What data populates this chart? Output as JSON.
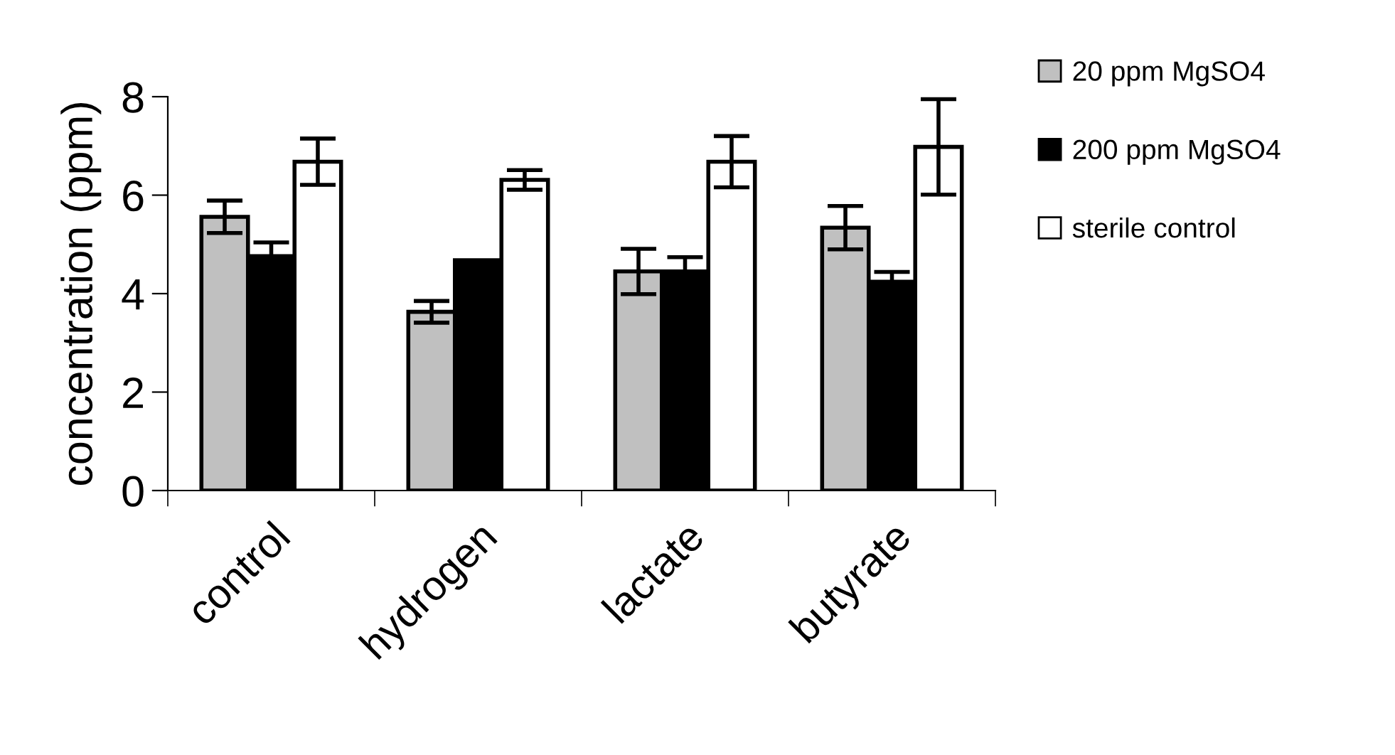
{
  "chart_data": {
    "type": "bar",
    "ylabel": "concentration (ppm)",
    "categories": [
      "control",
      "hydrogen",
      "lactate",
      "butyrate"
    ],
    "series": [
      {
        "name": "20 ppm MgSO4",
        "color": "#c0c0c0",
        "values": [
          5.56,
          3.63,
          4.45,
          5.34
        ],
        "errors": [
          0.33,
          0.22,
          0.46,
          0.44
        ]
      },
      {
        "name": "200 ppm MgSO4",
        "color": "#000000",
        "values": [
          4.76,
          4.68,
          4.45,
          4.24
        ],
        "errors": [
          0.28,
          null,
          0.29,
          0.2
        ]
      },
      {
        "name": "sterile control",
        "color": "#ffffff",
        "values": [
          6.68,
          6.31,
          6.68,
          6.98
        ],
        "errors": [
          0.47,
          0.2,
          0.52,
          0.97
        ]
      }
    ],
    "ylim": [
      0,
      8
    ],
    "yticks": [
      0,
      2,
      4,
      6,
      8
    ],
    "grid": false,
    "legend": "right"
  }
}
